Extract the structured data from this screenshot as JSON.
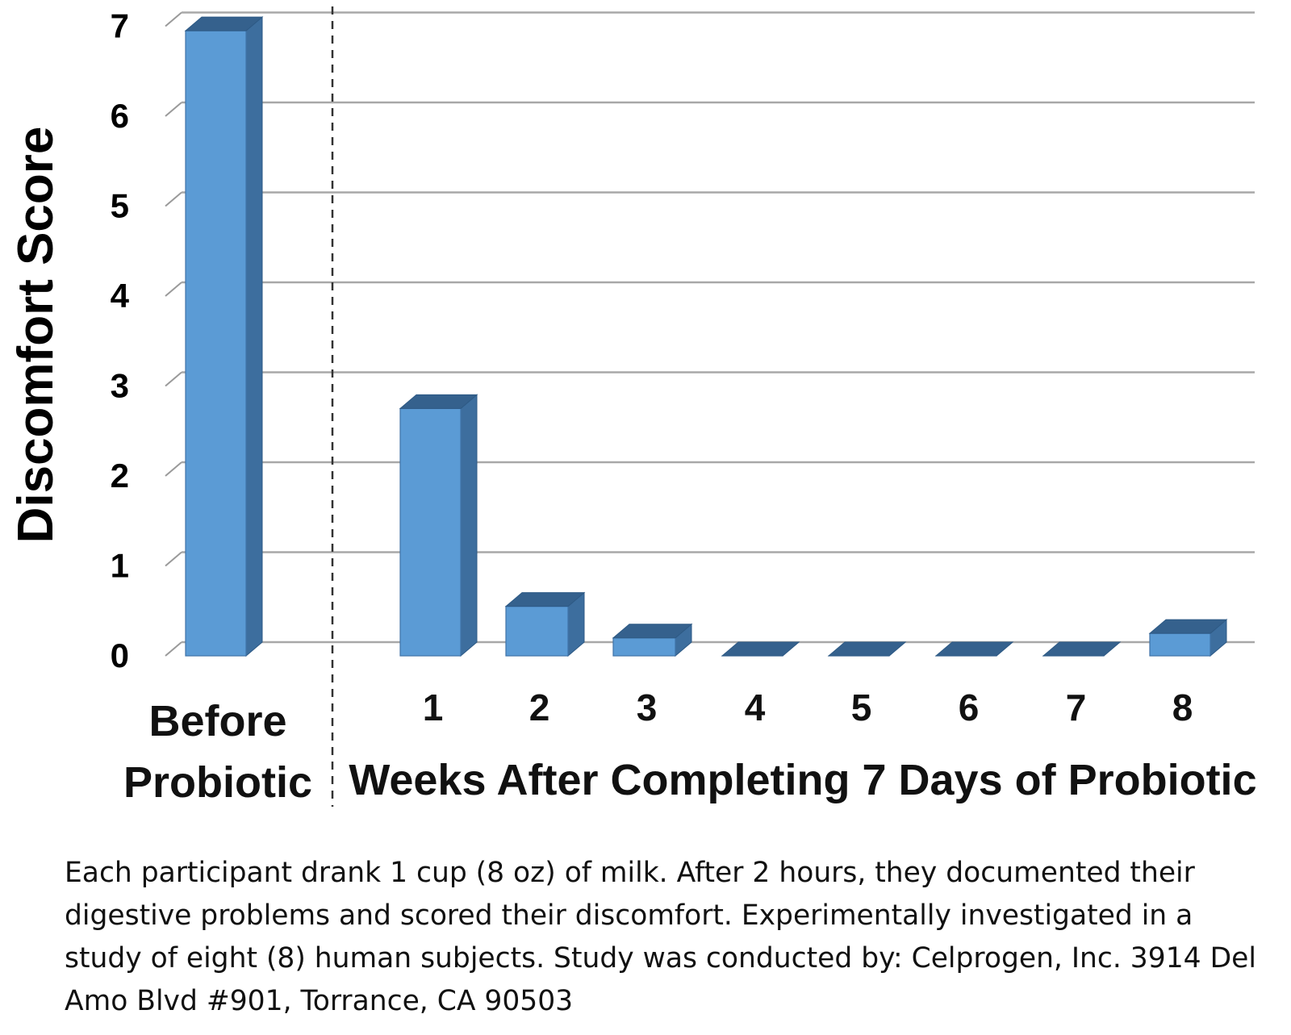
{
  "chart_data": {
    "type": "bar",
    "style": "3d",
    "categories": [
      "Before Probiotic",
      "1",
      "2",
      "3",
      "4",
      "5",
      "6",
      "7",
      "8"
    ],
    "values": [
      6.95,
      2.75,
      0.55,
      0.2,
      0.0,
      0.0,
      0.0,
      0.0,
      0.25
    ],
    "ylabel": "Discomfort  Score",
    "xlabel": "Weeks After Completing 7 Days of Probiotic",
    "group_label_lines": [
      "Before",
      "Probiotic"
    ],
    "ylim": [
      0,
      7
    ],
    "yticks": [
      "0",
      "1",
      "2",
      "3",
      "4",
      "5",
      "6",
      "7"
    ],
    "grid": true,
    "divider": "dashed",
    "bar_color": "#5b9bd5",
    "bar_side_color": "#3d6e9e",
    "bar_top_color": "#35618d"
  },
  "caption": "Each participant drank 1 cup (8 oz) of milk. After 2 hours, they documented their digestive problems and scored their discomfort. Experimentally investigated in a study of eight (8) human subjects. Study was conducted by: Celprogen, Inc. 3914 Del Amo Blvd #901, Torrance, CA 90503"
}
